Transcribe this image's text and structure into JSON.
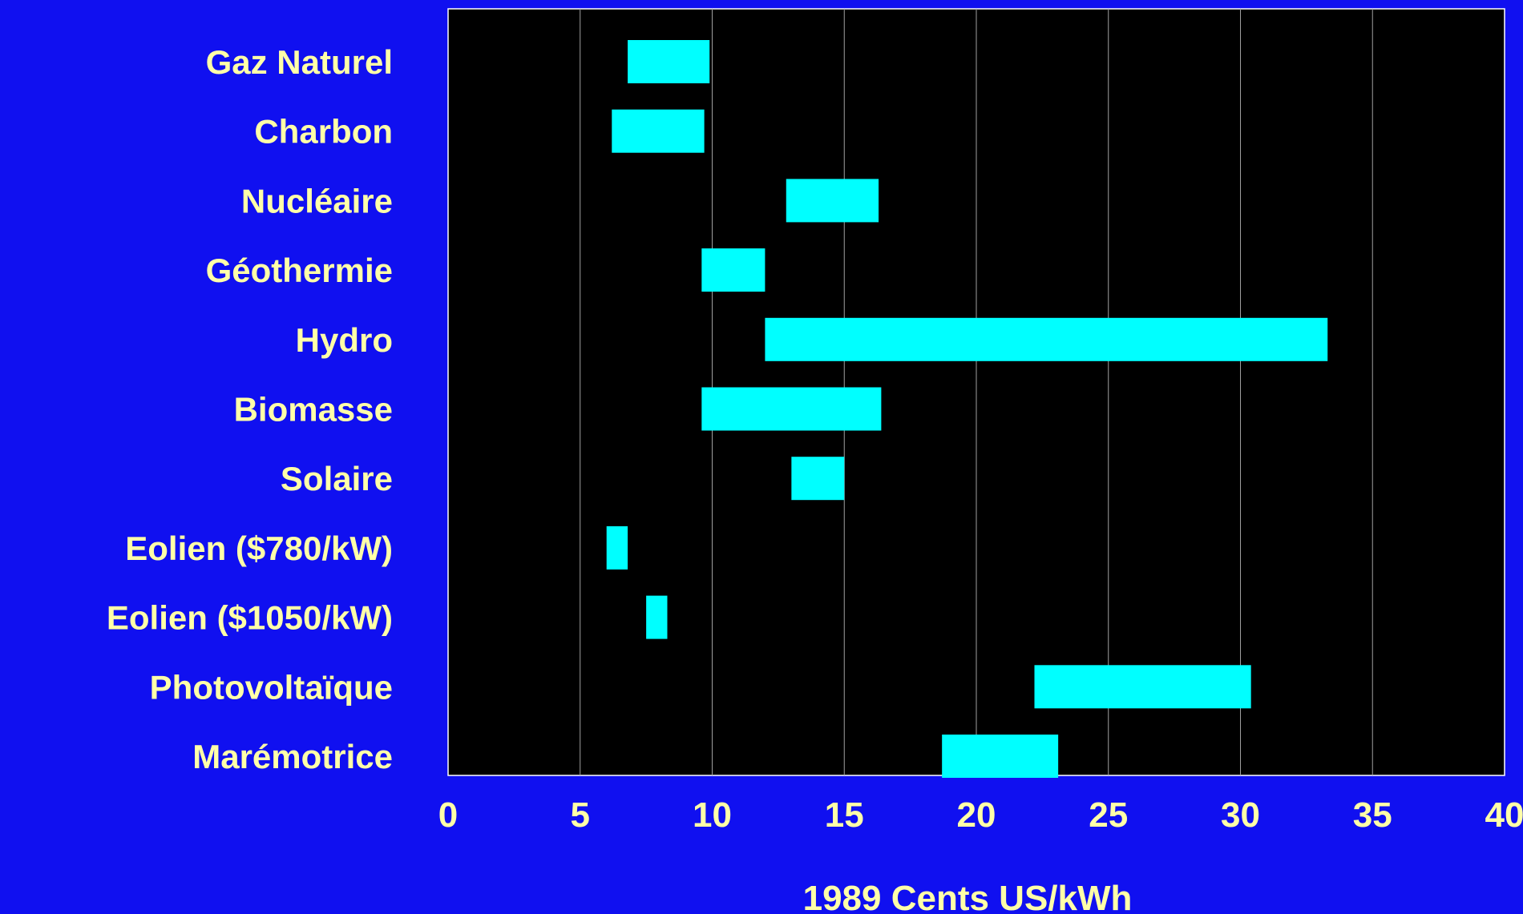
{
  "colors": {
    "page_background": "#1010f0",
    "plot_background": "#000000",
    "bar_fill": "#00ffff",
    "label_text": "#ffffa8",
    "gridline": "#a0a0a0",
    "plot_border": "#ffffff"
  },
  "chart_data": {
    "type": "bar",
    "orientation": "horizontal-range",
    "xlabel": "1989 Cents US/kWh",
    "xlim": [
      0,
      40
    ],
    "xticks": [
      "0",
      "5",
      "10",
      "15",
      "20",
      "25",
      "30",
      "35",
      "40"
    ],
    "grid": "vertical",
    "categories": [
      "Gaz Naturel",
      "Charbon",
      "Nucléaire",
      "Géothermie",
      "Hydro",
      "Biomasse",
      "Solaire",
      "Eolien ($780/kW)",
      "Eolien ($1050/kW)",
      "Photovoltaïque",
      "Marémotrice"
    ],
    "ranges": [
      [
        6.8,
        9.9
      ],
      [
        6.2,
        9.7
      ],
      [
        12.8,
        16.3
      ],
      [
        9.6,
        12.0
      ],
      [
        12.0,
        33.3
      ],
      [
        9.6,
        16.4
      ],
      [
        13.0,
        15.0
      ],
      [
        6.0,
        6.8
      ],
      [
        7.5,
        8.3
      ],
      [
        22.2,
        30.4
      ],
      [
        18.7,
        23.1
      ]
    ]
  }
}
